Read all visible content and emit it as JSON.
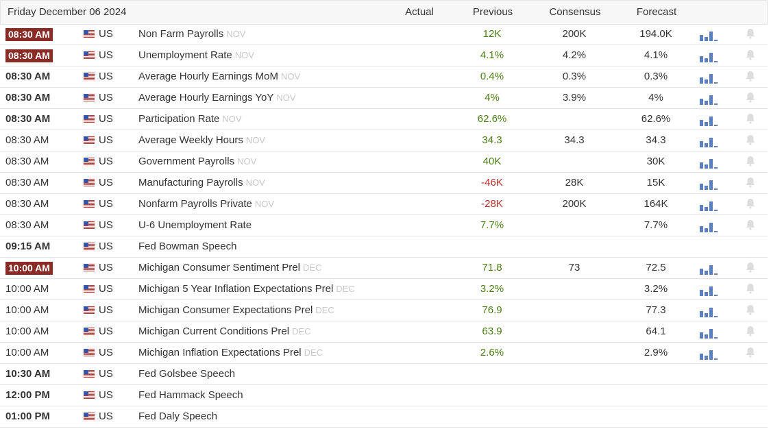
{
  "header": {
    "date": "Friday December 06 2024",
    "columns": [
      "Actual",
      "Previous",
      "Consensus",
      "Forecast"
    ]
  },
  "rows": [
    {
      "time": "08:30 AM",
      "time_style": "highlight",
      "country": "US",
      "event": "Non Farm Payrolls",
      "period": "NOV",
      "previous": "12K",
      "consensus": "200K",
      "forecast": "194.0K"
    },
    {
      "time": "08:30 AM",
      "time_style": "highlight",
      "country": "US",
      "event": "Unemployment Rate",
      "period": "NOV",
      "previous": "4.1%",
      "consensus": "4.2%",
      "forecast": "4.1%"
    },
    {
      "time": "08:30 AM",
      "time_style": "bold",
      "country": "US",
      "event": "Average Hourly Earnings MoM",
      "period": "NOV",
      "previous": "0.4%",
      "consensus": "0.3%",
      "forecast": "0.3%"
    },
    {
      "time": "08:30 AM",
      "time_style": "bold",
      "country": "US",
      "event": "Average Hourly Earnings YoY",
      "period": "NOV",
      "previous": "4%",
      "consensus": "3.9%",
      "forecast": "4%"
    },
    {
      "time": "08:30 AM",
      "time_style": "bold",
      "country": "US",
      "event": "Participation Rate",
      "period": "NOV",
      "previous": "62.6%",
      "consensus": null,
      "forecast": "62.6%"
    },
    {
      "time": "08:30 AM",
      "time_style": "normal",
      "country": "US",
      "event": "Average Weekly Hours",
      "period": "NOV",
      "previous": "34.3",
      "consensus": "34.3",
      "forecast": "34.3"
    },
    {
      "time": "08:30 AM",
      "time_style": "normal",
      "country": "US",
      "event": "Government Payrolls",
      "period": "NOV",
      "previous": "40K",
      "consensus": null,
      "forecast": "30K"
    },
    {
      "time": "08:30 AM",
      "time_style": "normal",
      "country": "US",
      "event": "Manufacturing Payrolls",
      "period": "NOV",
      "previous": "-46K",
      "consensus": "28K",
      "forecast": "15K"
    },
    {
      "time": "08:30 AM",
      "time_style": "normal",
      "country": "US",
      "event": "Nonfarm Payrolls Private",
      "period": "NOV",
      "previous": "-28K",
      "consensus": "200K",
      "forecast": "164K"
    },
    {
      "time": "08:30 AM",
      "time_style": "normal",
      "country": "US",
      "event": "U-6 Unemployment Rate",
      "period": null,
      "previous": "7.7%",
      "consensus": null,
      "forecast": "7.7%"
    },
    {
      "time": "09:15 AM",
      "time_style": "bold",
      "country": "US",
      "event": "Fed Bowman Speech",
      "period": null,
      "previous": null,
      "consensus": null,
      "forecast": null
    },
    {
      "time": "10:00 AM",
      "time_style": "highlight",
      "country": "US",
      "event": "Michigan Consumer Sentiment Prel",
      "period": "DEC",
      "previous": "71.8",
      "consensus": "73",
      "forecast": "72.5"
    },
    {
      "time": "10:00 AM",
      "time_style": "normal",
      "country": "US",
      "event": "Michigan 5 Year Inflation Expectations Prel",
      "period": "DEC",
      "previous": "3.2%",
      "consensus": null,
      "forecast": "3.2%"
    },
    {
      "time": "10:00 AM",
      "time_style": "normal",
      "country": "US",
      "event": "Michigan Consumer Expectations Prel",
      "period": "DEC",
      "previous": "76.9",
      "consensus": null,
      "forecast": "77.3"
    },
    {
      "time": "10:00 AM",
      "time_style": "normal",
      "country": "US",
      "event": "Michigan Current Conditions Prel",
      "period": "DEC",
      "previous": "63.9",
      "consensus": null,
      "forecast": "64.1"
    },
    {
      "time": "10:00 AM",
      "time_style": "normal",
      "country": "US",
      "event": "Michigan Inflation Expectations Prel",
      "period": "DEC",
      "previous": "2.6%",
      "consensus": null,
      "forecast": "2.9%"
    },
    {
      "time": "10:30 AM",
      "time_style": "bold",
      "country": "US",
      "event": "Fed Golsbee Speech",
      "period": null,
      "previous": null,
      "consensus": null,
      "forecast": null
    },
    {
      "time": "12:00 PM",
      "time_style": "bold",
      "country": "US",
      "event": "Fed Hammack Speech",
      "period": null,
      "previous": null,
      "consensus": null,
      "forecast": null
    },
    {
      "time": "01:00 PM",
      "time_style": "bold",
      "country": "US",
      "event": "Fed Daly Speech",
      "period": null,
      "previous": null,
      "consensus": null,
      "forecast": null
    }
  ]
}
